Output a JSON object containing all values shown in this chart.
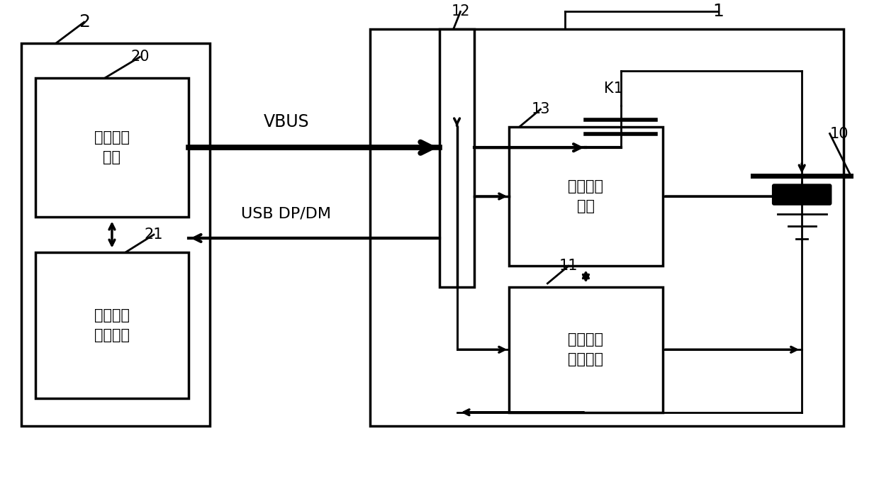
{
  "bg_color": "#ffffff",
  "lc": "#000000",
  "lw": 2.0,
  "tlw": 5.5,
  "blw": 2.5,
  "fs": 15,
  "fsl": 18,
  "text_unit20": "第一充电\n单元",
  "text_unit21": "第二充电\n控制单元",
  "text_unit13": "第二充电\n单元",
  "text_unit11": "第一充电\n控制单元",
  "vbus_label": "VBUS",
  "usb_label": "USB DP/DM",
  "label_2": "2",
  "label_1": "1",
  "label_20": "20",
  "label_21": "21",
  "label_10": "10",
  "label_11": "11",
  "label_12": "12",
  "label_13": "13",
  "label_K1": "K1",
  "figsize": [
    12.4,
    6.73
  ]
}
